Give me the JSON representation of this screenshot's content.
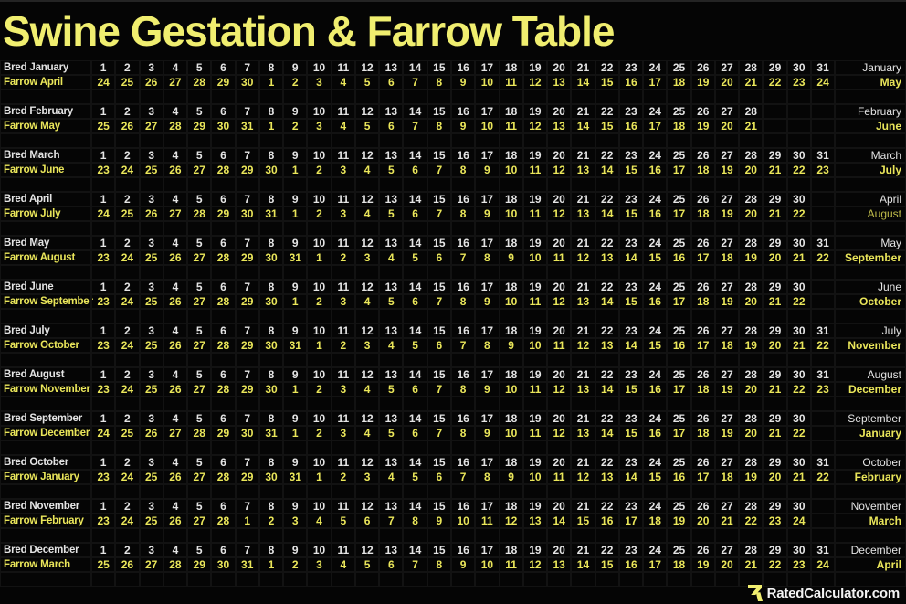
{
  "title": "Swine Gestation & Farrow Table",
  "branding": {
    "logo_icon": "rated-calculator-r-icon",
    "logo_text": "RatedCalculator.com"
  },
  "colors": {
    "background": "#050505",
    "grid_line": "#121212",
    "title_text": "#f0ee6f",
    "bred_text": "#e4e4e4",
    "farrow_text": "#eae65a",
    "brand_text": "#f4f4f4"
  },
  "chart_data": {
    "type": "table",
    "title": "Swine Gestation & Farrow Table",
    "rows": [
      {
        "bred_label": "Bred January",
        "farrow_label": "Farrow April",
        "bred_month_right": "January",
        "farrow_month_right": "May",
        "farrow_month_muted": false,
        "bred_days": [
          1,
          2,
          3,
          4,
          5,
          6,
          7,
          8,
          9,
          10,
          11,
          12,
          13,
          14,
          15,
          16,
          17,
          18,
          19,
          20,
          21,
          22,
          23,
          24,
          25,
          26,
          27,
          28,
          29,
          30,
          31
        ],
        "farrow_days": [
          24,
          25,
          26,
          27,
          28,
          29,
          30,
          1,
          2,
          3,
          4,
          5,
          6,
          7,
          8,
          9,
          10,
          11,
          12,
          13,
          14,
          15,
          16,
          17,
          18,
          19,
          20,
          21,
          22,
          23,
          24
        ]
      },
      {
        "bred_label": "Bred February",
        "farrow_label": "Farrow May",
        "bred_month_right": "February",
        "farrow_month_right": "June",
        "farrow_month_muted": false,
        "bred_days": [
          1,
          2,
          3,
          4,
          5,
          6,
          7,
          8,
          9,
          10,
          11,
          12,
          13,
          14,
          15,
          16,
          17,
          18,
          19,
          20,
          21,
          22,
          23,
          24,
          25,
          26,
          27,
          28
        ],
        "farrow_days": [
          25,
          26,
          27,
          28,
          29,
          30,
          31,
          1,
          2,
          3,
          4,
          5,
          6,
          7,
          8,
          9,
          10,
          11,
          12,
          13,
          14,
          15,
          16,
          17,
          18,
          19,
          20,
          21
        ]
      },
      {
        "bred_label": "Bred March",
        "farrow_label": "Farrow June",
        "bred_month_right": "March",
        "farrow_month_right": "July",
        "farrow_month_muted": false,
        "bred_days": [
          1,
          2,
          3,
          4,
          5,
          6,
          7,
          8,
          9,
          10,
          11,
          12,
          13,
          14,
          15,
          16,
          17,
          18,
          19,
          20,
          21,
          22,
          23,
          24,
          25,
          26,
          27,
          28,
          29,
          30,
          31
        ],
        "farrow_days": [
          23,
          24,
          25,
          26,
          27,
          28,
          29,
          30,
          1,
          2,
          3,
          4,
          5,
          6,
          7,
          8,
          9,
          10,
          11,
          12,
          13,
          14,
          15,
          16,
          17,
          18,
          19,
          20,
          21,
          22,
          23
        ]
      },
      {
        "bred_label": "Bred April",
        "farrow_label": "Farrow July",
        "bred_month_right": "April",
        "farrow_month_right": "August",
        "farrow_month_muted": true,
        "bred_days": [
          1,
          2,
          3,
          4,
          5,
          6,
          7,
          8,
          9,
          10,
          11,
          12,
          13,
          14,
          15,
          16,
          17,
          18,
          19,
          20,
          21,
          22,
          23,
          24,
          25,
          26,
          27,
          28,
          29,
          30
        ],
        "farrow_days": [
          24,
          25,
          26,
          27,
          28,
          29,
          30,
          31,
          1,
          2,
          3,
          4,
          5,
          6,
          7,
          8,
          9,
          10,
          11,
          12,
          13,
          14,
          15,
          16,
          17,
          18,
          19,
          20,
          21,
          22
        ]
      },
      {
        "bred_label": "Bred May",
        "farrow_label": "Farrow August",
        "bred_month_right": "May",
        "farrow_month_right": "September",
        "farrow_month_muted": false,
        "bred_days": [
          1,
          2,
          3,
          4,
          5,
          6,
          7,
          8,
          9,
          10,
          11,
          12,
          13,
          14,
          15,
          16,
          17,
          18,
          19,
          20,
          21,
          22,
          23,
          24,
          25,
          26,
          27,
          28,
          29,
          30,
          31
        ],
        "farrow_days": [
          23,
          24,
          25,
          26,
          27,
          28,
          29,
          30,
          31,
          1,
          2,
          3,
          4,
          5,
          6,
          7,
          8,
          9,
          10,
          11,
          12,
          13,
          14,
          15,
          16,
          17,
          18,
          19,
          20,
          21,
          22
        ]
      },
      {
        "bred_label": "Bred June",
        "farrow_label": "Farrow September",
        "bred_month_right": "June",
        "farrow_month_right": "October",
        "farrow_month_muted": false,
        "bred_days": [
          1,
          2,
          3,
          4,
          5,
          6,
          7,
          8,
          9,
          10,
          11,
          12,
          13,
          14,
          15,
          16,
          17,
          18,
          19,
          20,
          21,
          22,
          23,
          24,
          25,
          26,
          27,
          28,
          29,
          30
        ],
        "farrow_days": [
          23,
          24,
          25,
          26,
          27,
          28,
          29,
          30,
          1,
          2,
          3,
          4,
          5,
          6,
          7,
          8,
          9,
          10,
          11,
          12,
          13,
          14,
          15,
          16,
          17,
          18,
          19,
          20,
          21,
          22
        ]
      },
      {
        "bred_label": "Bred July",
        "farrow_label": "Farrow October",
        "bred_month_right": "July",
        "farrow_month_right": "November",
        "farrow_month_muted": false,
        "bred_days": [
          1,
          2,
          3,
          4,
          5,
          6,
          7,
          8,
          9,
          10,
          11,
          12,
          13,
          14,
          15,
          16,
          17,
          18,
          19,
          20,
          21,
          22,
          23,
          24,
          25,
          26,
          27,
          28,
          29,
          30,
          31
        ],
        "farrow_days": [
          23,
          24,
          25,
          26,
          27,
          28,
          29,
          30,
          31,
          1,
          2,
          3,
          4,
          5,
          6,
          7,
          8,
          9,
          10,
          11,
          12,
          13,
          14,
          15,
          16,
          17,
          18,
          19,
          20,
          21,
          22
        ]
      },
      {
        "bred_label": "Bred August",
        "farrow_label": "Farrow November",
        "bred_month_right": "August",
        "farrow_month_right": "December",
        "farrow_month_muted": false,
        "bred_days": [
          1,
          2,
          3,
          4,
          5,
          6,
          7,
          8,
          9,
          10,
          11,
          12,
          13,
          14,
          15,
          16,
          17,
          18,
          19,
          20,
          21,
          22,
          23,
          24,
          25,
          26,
          27,
          28,
          29,
          30,
          31
        ],
        "farrow_days": [
          23,
          24,
          25,
          26,
          27,
          28,
          29,
          30,
          1,
          2,
          3,
          4,
          5,
          6,
          7,
          8,
          9,
          10,
          11,
          12,
          13,
          14,
          15,
          16,
          17,
          18,
          19,
          20,
          21,
          22,
          23
        ]
      },
      {
        "bred_label": "Bred September",
        "farrow_label": "Farrow December",
        "bred_month_right": "September",
        "farrow_month_right": "January",
        "farrow_month_muted": false,
        "bred_days": [
          1,
          2,
          3,
          4,
          5,
          6,
          7,
          8,
          9,
          10,
          11,
          12,
          13,
          14,
          15,
          16,
          17,
          18,
          19,
          20,
          21,
          22,
          23,
          24,
          25,
          26,
          27,
          28,
          29,
          30
        ],
        "farrow_days": [
          24,
          25,
          26,
          27,
          28,
          29,
          30,
          31,
          1,
          2,
          3,
          4,
          5,
          6,
          7,
          8,
          9,
          10,
          11,
          12,
          13,
          14,
          15,
          16,
          17,
          18,
          19,
          20,
          21,
          22
        ]
      },
      {
        "bred_label": "Bred October",
        "farrow_label": "Farrow January",
        "bred_month_right": "October",
        "farrow_month_right": "February",
        "farrow_month_muted": false,
        "bred_days": [
          1,
          2,
          3,
          4,
          5,
          6,
          7,
          8,
          9,
          10,
          11,
          12,
          13,
          14,
          15,
          16,
          17,
          18,
          19,
          20,
          21,
          22,
          23,
          24,
          25,
          26,
          27,
          28,
          29,
          30,
          31
        ],
        "farrow_days": [
          23,
          24,
          25,
          26,
          27,
          28,
          29,
          30,
          31,
          1,
          2,
          3,
          4,
          5,
          6,
          7,
          8,
          9,
          10,
          11,
          12,
          13,
          14,
          15,
          16,
          17,
          18,
          19,
          20,
          21,
          22
        ]
      },
      {
        "bred_label": "Bred November",
        "farrow_label": "Farrow February",
        "bred_month_right": "November",
        "farrow_month_right": "March",
        "farrow_month_muted": false,
        "bred_days": [
          1,
          2,
          3,
          4,
          5,
          6,
          7,
          8,
          9,
          10,
          11,
          12,
          13,
          14,
          15,
          16,
          17,
          18,
          19,
          20,
          21,
          22,
          23,
          24,
          25,
          26,
          27,
          28,
          29,
          30
        ],
        "farrow_days": [
          23,
          24,
          25,
          26,
          27,
          28,
          1,
          2,
          3,
          4,
          5,
          6,
          7,
          8,
          9,
          10,
          11,
          12,
          13,
          14,
          15,
          16,
          17,
          18,
          19,
          20,
          21,
          22,
          23,
          24
        ]
      },
      {
        "bred_label": "Bred December",
        "farrow_label": "Farrow March",
        "bred_month_right": "December",
        "farrow_month_right": "April",
        "farrow_month_muted": false,
        "bred_days": [
          1,
          2,
          3,
          4,
          5,
          6,
          7,
          8,
          9,
          10,
          11,
          12,
          13,
          14,
          15,
          16,
          17,
          18,
          19,
          20,
          21,
          22,
          23,
          24,
          25,
          26,
          27,
          28,
          29,
          30,
          31
        ],
        "farrow_days": [
          25,
          26,
          27,
          28,
          29,
          30,
          31,
          1,
          2,
          3,
          4,
          5,
          6,
          7,
          8,
          9,
          10,
          11,
          12,
          13,
          14,
          15,
          16,
          17,
          18,
          19,
          20,
          21,
          22,
          23,
          24
        ]
      }
    ]
  }
}
